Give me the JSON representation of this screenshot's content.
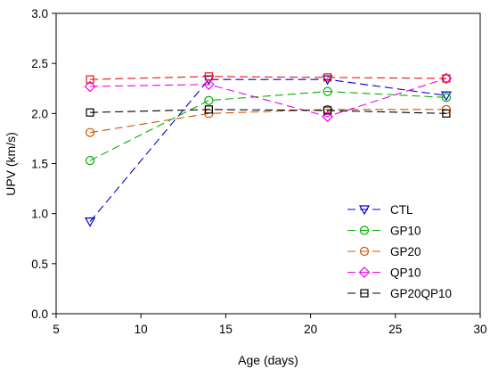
{
  "chart_data": {
    "type": "line",
    "xlabel": "Age (days)",
    "ylabel": "UPV (km/s)",
    "xlim": [
      5,
      30
    ],
    "ylim": [
      0.0,
      3.0
    ],
    "xticks": [
      "5",
      "10",
      "15",
      "20",
      "25",
      "30"
    ],
    "yticks": [
      "0.0",
      "0.5",
      "1.0",
      "1.5",
      "2.0",
      "2.5",
      "3.0"
    ],
    "grid": false,
    "legend_position": "lower-right",
    "x": [
      7,
      14,
      21,
      28
    ],
    "series": [
      {
        "name": "CTL",
        "values": [
          0.92,
          2.34,
          2.34,
          2.18
        ],
        "color": "#0000cc",
        "marker": "triangle-down"
      },
      {
        "name": "GP10",
        "values": [
          1.53,
          2.13,
          2.22,
          2.16
        ],
        "color": "#00b000",
        "marker": "circle"
      },
      {
        "name": "GP20",
        "values": [
          1.81,
          2.0,
          2.04,
          2.04
        ],
        "color": "#cc5500",
        "marker": "circle"
      },
      {
        "name": "QP10",
        "values": [
          2.27,
          2.29,
          1.97,
          2.35
        ],
        "color": "#ee00ee",
        "marker": "diamond"
      },
      {
        "name": "GP20QP10",
        "values": [
          2.01,
          2.04,
          2.03,
          2.0
        ],
        "color": "#000000",
        "marker": "square"
      },
      {
        "name": "",
        "values": [
          2.34,
          2.37,
          2.36,
          2.35
        ],
        "color": "#ee1111",
        "marker": "square"
      }
    ]
  }
}
